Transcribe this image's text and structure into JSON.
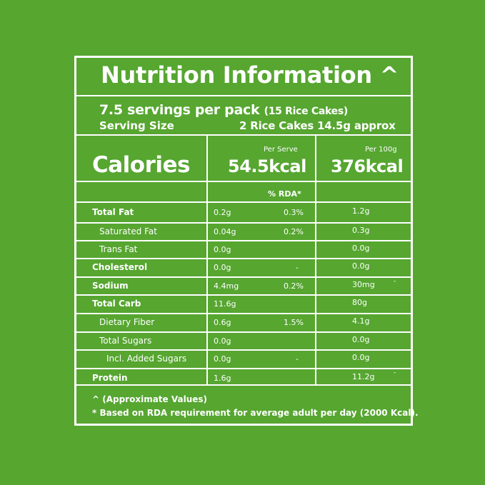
{
  "title": "Nutrition Information ^",
  "servings_main": "7.5 servings per pack",
  "servings_note": "(15 Rice Cakes)",
  "serving_size_label": "Serving Size",
  "serving_size_value": "2 Rice Cakes 14.5g approx",
  "calories_label": "Calories",
  "per_serve_label": "Per Serve",
  "per_serve_kcal": "54.5kcal",
  "per_100g_label": "Per 100g",
  "per_100g_kcal": "376kcal",
  "rda_label": "% RDA*",
  "rows": [
    {
      "name": "Total Fat",
      "serve": "0.2g",
      "rda": "0.3%",
      "per100": "1.2g",
      "bold": true,
      "indent": 0,
      "tick": ""
    },
    {
      "name": "Saturated Fat",
      "serve": "0.04g",
      "rda": "0.2%",
      "per100": "0.3g",
      "bold": false,
      "indent": 1,
      "tick": ""
    },
    {
      "name": "Trans Fat",
      "serve": "0.0g",
      "rda": "",
      "per100": "0.0g",
      "bold": false,
      "indent": 1,
      "tick": ""
    },
    {
      "name": "Cholesterol",
      "serve": "0.0g",
      "rda": "-",
      "per100": "0.0g",
      "bold": true,
      "indent": 0,
      "tick": ""
    },
    {
      "name": "Sodium",
      "serve": "4.4mg",
      "rda": "0.2%",
      "per100": "30mg",
      "bold": true,
      "indent": 0,
      "tick": "-"
    },
    {
      "name": "Total Carb",
      "serve": "11.6g",
      "rda": "",
      "per100": "80g",
      "bold": true,
      "indent": 0,
      "tick": ""
    },
    {
      "name": "Dietary Fiber",
      "serve": "0.6g",
      "rda": "1.5%",
      "per100": "4.1g",
      "bold": false,
      "indent": 1,
      "tick": ""
    },
    {
      "name": "Total Sugars",
      "serve": "0.0g",
      "rda": "",
      "per100": "0.0g",
      "bold": false,
      "indent": 1,
      "tick": ""
    },
    {
      "name": "Incl. Added Sugars",
      "serve": "0.0g",
      "rda": "-",
      "per100": "0.0g",
      "bold": false,
      "indent": 2,
      "tick": ""
    },
    {
      "name": "Protein",
      "serve": "1.6g",
      "rda": "",
      "per100": "11.2g",
      "bold": true,
      "indent": 0,
      "tick": "-"
    }
  ],
  "footnote_approx": "^ (Approximate Values)",
  "footnote_rda": "* Based on RDA requirement for average adult per day (2000 Kcal)."
}
